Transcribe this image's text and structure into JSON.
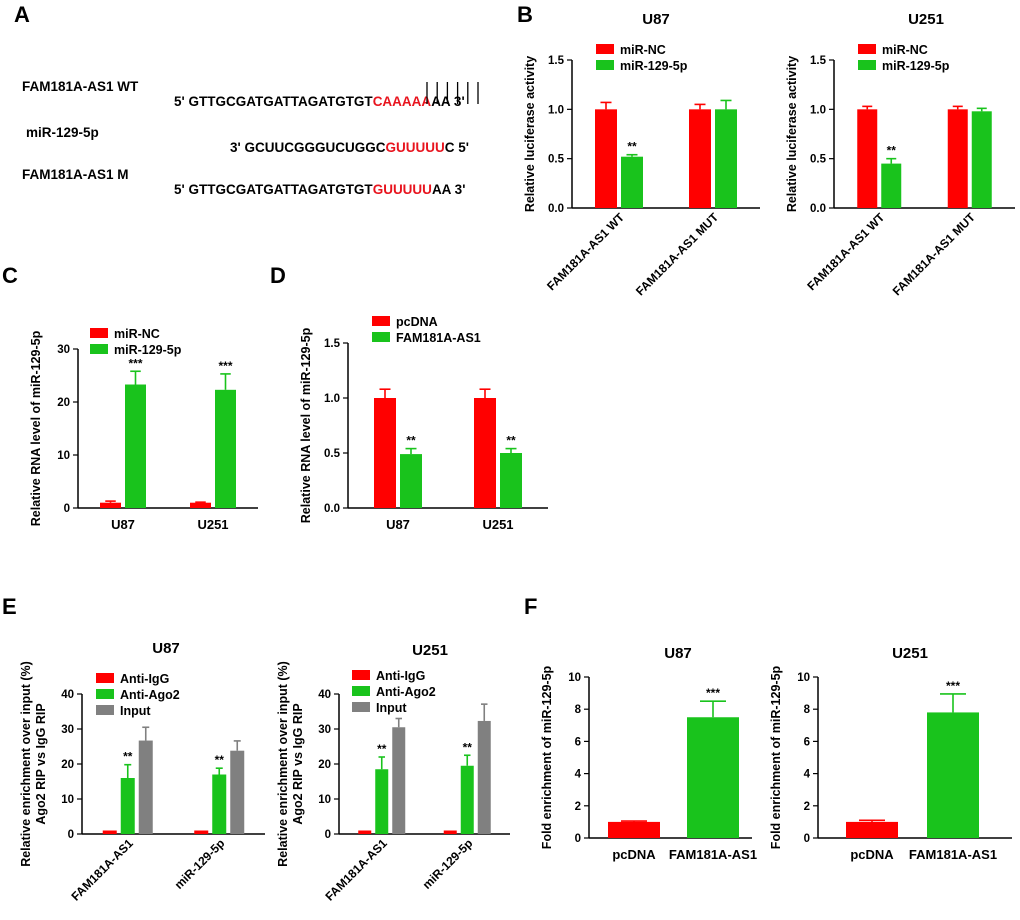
{
  "panel_letters": {
    "a": "A",
    "b": "B",
    "c": "C",
    "d": "D",
    "e": "E",
    "f": "F"
  },
  "sequences": {
    "wt": {
      "name": "FAM181A-AS1 WT",
      "prefix": "5' GTTGCGATGATTAGATGTGT",
      "site": "CAAAAA",
      "suffix": "AA 3'"
    },
    "mir": {
      "name": "miR-129-5p",
      "prefix": "3' GCUUCGGGUCUGGC",
      "site": "GUUUUU",
      "suffix": "C 5'"
    },
    "mut": {
      "name": "FAM181A-AS1 M",
      "prefix": "5' GTTGCGATGATTAGATGTGT",
      "site": "GUUUUU",
      "suffix": "AA 3'"
    }
  },
  "colors": {
    "red": "#ff0000",
    "green": "#19c31c",
    "gray": "#808080",
    "site_text": "#e8141e"
  },
  "chart_data": [
    {
      "id": "B1",
      "type": "bar",
      "title": "U87",
      "ylabel": "Relative luciferase activity",
      "ylim": [
        0,
        1.5
      ],
      "yticks": [
        "0.0",
        "0.5",
        "1.0",
        "1.5"
      ],
      "xtick_rotate": true,
      "categories": [
        "FAM181A-AS1 WT",
        "FAM181A-AS1 MUT"
      ],
      "series": [
        {
          "name": "miR-NC",
          "color": "red",
          "values": [
            1.0,
            1.0
          ],
          "errors": [
            0.07,
            0.05
          ]
        },
        {
          "name": "miR-129-5p",
          "color": "green",
          "values": [
            0.52,
            1.0
          ],
          "errors": [
            0.02,
            0.09
          ]
        }
      ],
      "annotations": [
        {
          "series": 1,
          "category": 0,
          "text": "**"
        }
      ]
    },
    {
      "id": "B2",
      "type": "bar",
      "title": "U251",
      "ylabel": "Relative luciferase activity",
      "ylim": [
        0,
        1.5
      ],
      "yticks": [
        "0.0",
        "0.5",
        "1.0",
        "1.5"
      ],
      "xtick_rotate": true,
      "categories": [
        "FAM181A-AS1 WT",
        "FAM181A-AS1 MUT"
      ],
      "series": [
        {
          "name": "miR-NC",
          "color": "red",
          "values": [
            1.0,
            1.0
          ],
          "errors": [
            0.03,
            0.03
          ]
        },
        {
          "name": "miR-129-5p",
          "color": "green",
          "values": [
            0.45,
            0.98
          ],
          "errors": [
            0.05,
            0.03
          ]
        }
      ],
      "annotations": [
        {
          "series": 1,
          "category": 0,
          "text": "**"
        }
      ]
    },
    {
      "id": "C",
      "type": "bar",
      "title": "",
      "ylabel": "Relative RNA level of miR-129-5p",
      "ylim": [
        0,
        30
      ],
      "yticks": [
        "0",
        "10",
        "20",
        "30"
      ],
      "xtick_rotate": false,
      "categories": [
        "U87",
        "U251"
      ],
      "series": [
        {
          "name": "miR-NC",
          "color": "red",
          "values": [
            1.0,
            1.0
          ],
          "errors": [
            0.3,
            0.1
          ]
        },
        {
          "name": "miR-129-5p",
          "color": "green",
          "values": [
            23.3,
            22.3
          ],
          "errors": [
            2.5,
            3.0
          ]
        }
      ],
      "annotations": [
        {
          "series": 1,
          "category": 0,
          "text": "***"
        },
        {
          "series": 1,
          "category": 1,
          "text": "***"
        }
      ]
    },
    {
      "id": "D",
      "type": "bar",
      "title": "",
      "ylabel": "Relative RNA level of miR-129-5p",
      "ylim": [
        0,
        1.5
      ],
      "yticks": [
        "0.0",
        "0.5",
        "1.0",
        "1.5"
      ],
      "xtick_rotate": false,
      "categories": [
        "U87",
        "U251"
      ],
      "series": [
        {
          "name": "pcDNA",
          "color": "red",
          "values": [
            1.0,
            1.0
          ],
          "errors": [
            0.08,
            0.08
          ]
        },
        {
          "name": "FAM181A-AS1",
          "color": "green",
          "values": [
            0.49,
            0.5
          ],
          "errors": [
            0.05,
            0.04
          ]
        }
      ],
      "annotations": [
        {
          "series": 1,
          "category": 0,
          "text": "**"
        },
        {
          "series": 1,
          "category": 1,
          "text": "**"
        }
      ]
    },
    {
      "id": "E1",
      "type": "bar",
      "title": "U87",
      "ylabel": "Relative enrichment over input (%)",
      "ylabel2": "Ago2 RIP vs IgG RIP",
      "ylim": [
        0,
        40
      ],
      "yticks": [
        "0",
        "10",
        "20",
        "30",
        "40"
      ],
      "xtick_rotate": true,
      "categories": [
        "FAM181A-AS1",
        "miR-129-5p"
      ],
      "series": [
        {
          "name": "Anti-IgG",
          "color": "red",
          "values": [
            1.0,
            1.0
          ],
          "errors": [
            0,
            0
          ]
        },
        {
          "name": "Anti-Ago2",
          "color": "green",
          "values": [
            16.0,
            17.0
          ],
          "errors": [
            3.8,
            1.8
          ]
        },
        {
          "name": "Input",
          "color": "gray",
          "values": [
            26.7,
            23.8
          ],
          "errors": [
            3.8,
            2.8
          ]
        }
      ],
      "annotations": [
        {
          "series": 1,
          "category": 0,
          "text": "**"
        },
        {
          "series": 1,
          "category": 1,
          "text": "**"
        }
      ]
    },
    {
      "id": "E2",
      "type": "bar",
      "title": "U251",
      "ylabel": "Relative enrichment over input (%)",
      "ylabel2": "Ago2 RIP vs IgG RIP",
      "ylim": [
        0,
        40
      ],
      "yticks": [
        "0",
        "10",
        "20",
        "30",
        "40"
      ],
      "xtick_rotate": true,
      "categories": [
        "FAM181A-AS1",
        "miR-129-5p"
      ],
      "series": [
        {
          "name": "Anti-IgG",
          "color": "red",
          "values": [
            1.0,
            1.0
          ],
          "errors": [
            0,
            0
          ]
        },
        {
          "name": "Anti-Ago2",
          "color": "green",
          "values": [
            18.5,
            19.5
          ],
          "errors": [
            3.5,
            3.0
          ]
        },
        {
          "name": "Input",
          "color": "gray",
          "values": [
            30.5,
            32.3
          ],
          "errors": [
            2.5,
            4.8
          ]
        }
      ],
      "annotations": [
        {
          "series": 1,
          "category": 0,
          "text": "**"
        },
        {
          "series": 1,
          "category": 1,
          "text": "**"
        }
      ]
    },
    {
      "id": "F1",
      "type": "bar",
      "title": "U87",
      "ylabel": "Fold enrichment of miR-129-5p",
      "ylim": [
        0,
        10
      ],
      "yticks": [
        "0",
        "2",
        "4",
        "6",
        "8",
        "10"
      ],
      "xtick_rotate": false,
      "categories": [
        "pcDNA",
        "FAM181A-AS1"
      ],
      "series": [
        {
          "name": "",
          "values": [
            1.0,
            7.5
          ],
          "errors": [
            0.05,
            1.0
          ],
          "colors": [
            "red",
            "green"
          ]
        }
      ],
      "annotations": [
        {
          "series": 0,
          "category": 1,
          "text": "***"
        }
      ]
    },
    {
      "id": "F2",
      "type": "bar",
      "title": "U251",
      "ylabel": "Fold enrichment of miR-129-5p",
      "ylim": [
        0,
        10
      ],
      "yticks": [
        "0",
        "2",
        "4",
        "6",
        "8",
        "10"
      ],
      "xtick_rotate": false,
      "categories": [
        "pcDNA",
        "FAM181A-AS1"
      ],
      "series": [
        {
          "name": "",
          "values": [
            1.0,
            7.8
          ],
          "errors": [
            0.1,
            1.15
          ],
          "colors": [
            "red",
            "green"
          ]
        }
      ],
      "annotations": [
        {
          "series": 0,
          "category": 1,
          "text": "***"
        }
      ]
    }
  ]
}
